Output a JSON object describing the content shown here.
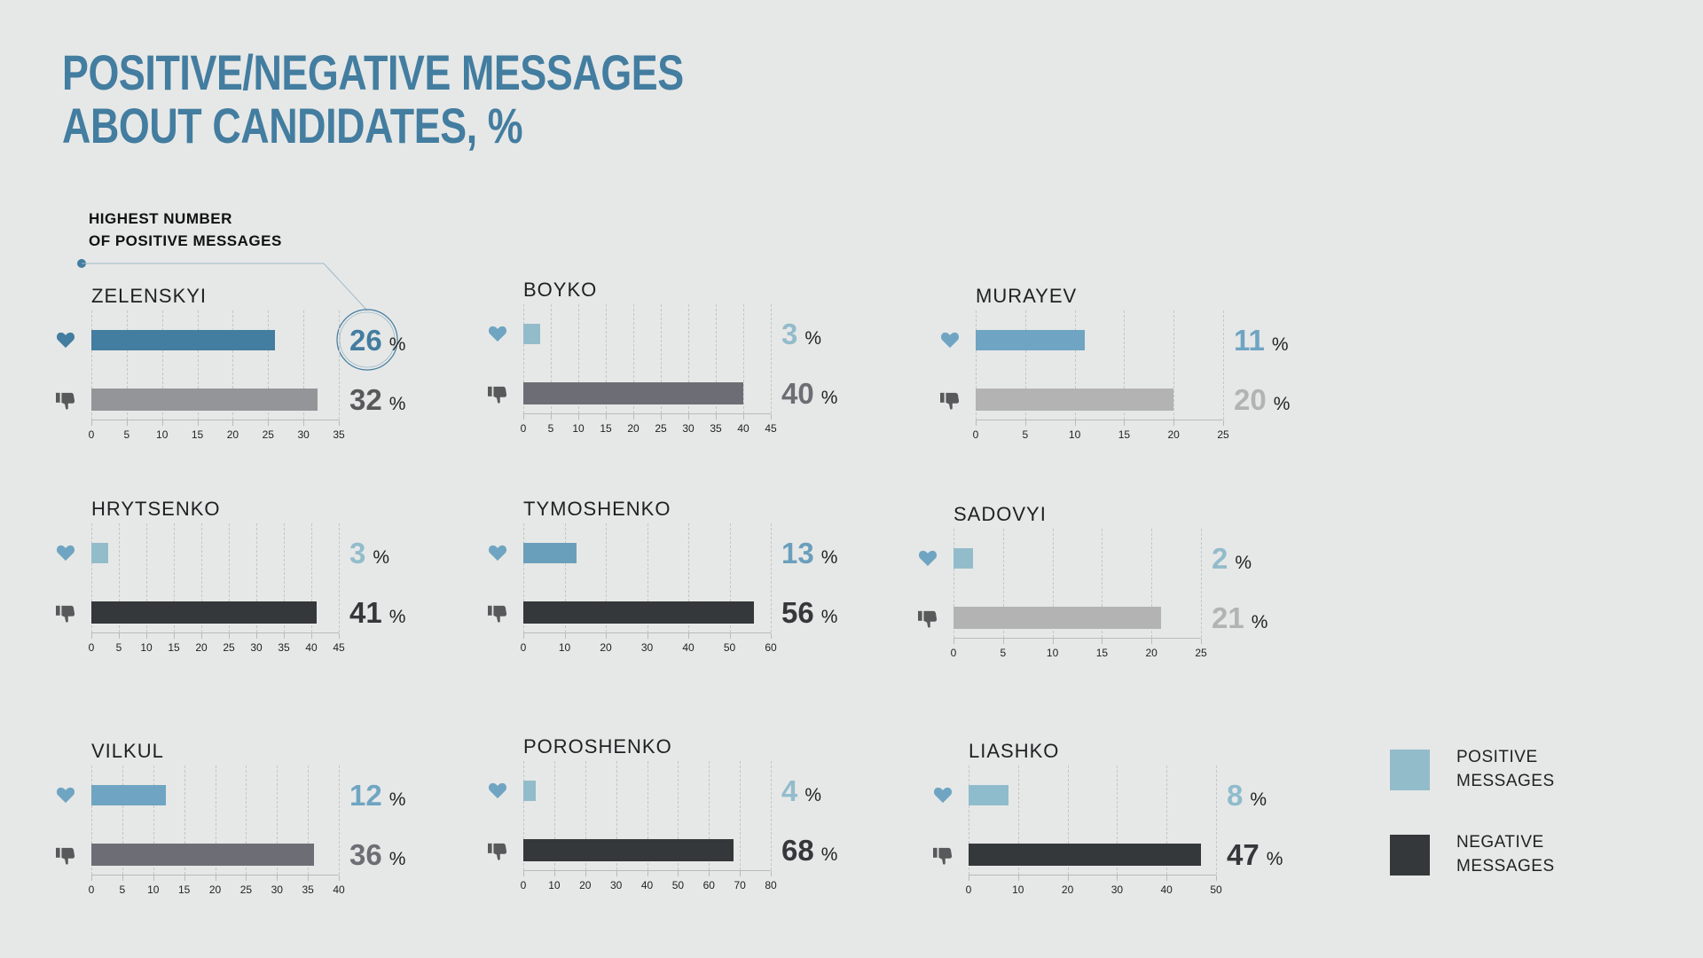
{
  "title": {
    "line1": "POSITIVE/NEGATIVE MESSAGES",
    "line2": "ABOUT CANDIDATES, %"
  },
  "annotation": {
    "line1": "HIGHEST NUMBER",
    "line2": "OF POSITIVE MESSAGES"
  },
  "legend": {
    "positive": {
      "line1": "POSITIVE",
      "line2": "MESSAGES",
      "color": "#93bccb"
    },
    "negative": {
      "line1": "NEGATIVE",
      "line2": "MESSAGES",
      "color": "#35383b"
    }
  },
  "percent_sign": "%",
  "chart_data": [
    {
      "type": "bar",
      "title": "ZELENSKYI",
      "positive": 26,
      "negative": 32,
      "xlim": [
        0,
        35
      ],
      "ticks": [
        0,
        5,
        10,
        15,
        20,
        25,
        30,
        35
      ],
      "pos_color": "#437da0",
      "neg_color": "#939598",
      "neg_text_color": "#58595b",
      "highlight": true
    },
    {
      "type": "bar",
      "title": "BOYKO",
      "positive": 3,
      "negative": 40,
      "xlim": [
        0,
        45
      ],
      "ticks": [
        0,
        5,
        10,
        15,
        20,
        25,
        30,
        35,
        40,
        45
      ],
      "pos_color": "#93bccb",
      "neg_color": "#6d6e75",
      "neg_text_color": "#6d6e75"
    },
    {
      "type": "bar",
      "title": "MURAYEV",
      "positive": 11,
      "negative": 20,
      "xlim": [
        0,
        25
      ],
      "ticks": [
        0,
        5,
        10,
        15,
        20,
        25
      ],
      "pos_color": "#6fa5c2",
      "neg_color": "#b3b3b3",
      "neg_text_color": "#b3b3b3"
    },
    {
      "type": "bar",
      "title": "HRYTSENKO",
      "positive": 3,
      "negative": 41,
      "xlim": [
        0,
        45
      ],
      "ticks": [
        0,
        5,
        10,
        15,
        20,
        25,
        30,
        35,
        40,
        45
      ],
      "pos_color": "#93bccb",
      "neg_color": "#35383b",
      "neg_text_color": "#35383b"
    },
    {
      "type": "bar",
      "title": "TYMOSHENKO",
      "positive": 13,
      "negative": 56,
      "xlim": [
        0,
        60
      ],
      "ticks": [
        0,
        10,
        20,
        30,
        40,
        50,
        60
      ],
      "pos_color": "#6a9fbc",
      "neg_color": "#35383b",
      "neg_text_color": "#35383b"
    },
    {
      "type": "bar",
      "title": "SADOVYI",
      "positive": 2,
      "negative": 21,
      "xlim": [
        0,
        25
      ],
      "ticks": [
        0,
        5,
        10,
        15,
        20,
        25
      ],
      "pos_color": "#93bccb",
      "neg_color": "#b3b3b3",
      "neg_text_color": "#b3b3b3"
    },
    {
      "type": "bar",
      "title": "VILKUL",
      "positive": 12,
      "negative": 36,
      "xlim": [
        0,
        40
      ],
      "ticks": [
        0,
        5,
        10,
        15,
        20,
        25,
        30,
        35,
        40
      ],
      "pos_color": "#6fa5c2",
      "neg_color": "#6d6e75",
      "neg_text_color": "#6d6e75"
    },
    {
      "type": "bar",
      "title": "POROSHENKO",
      "positive": 4,
      "negative": 68,
      "xlim": [
        0,
        80
      ],
      "ticks": [
        0,
        10,
        20,
        30,
        40,
        50,
        60,
        70,
        80
      ],
      "pos_color": "#93bccb",
      "neg_color": "#35383b",
      "neg_text_color": "#35383b"
    },
    {
      "type": "bar",
      "title": "LIASHKO",
      "positive": 8,
      "negative": 47,
      "xlim": [
        0,
        50
      ],
      "ticks": [
        0,
        10,
        20,
        30,
        40,
        50
      ],
      "pos_color": "#8fbccc",
      "neg_color": "#35383b",
      "neg_text_color": "#35383b"
    }
  ]
}
